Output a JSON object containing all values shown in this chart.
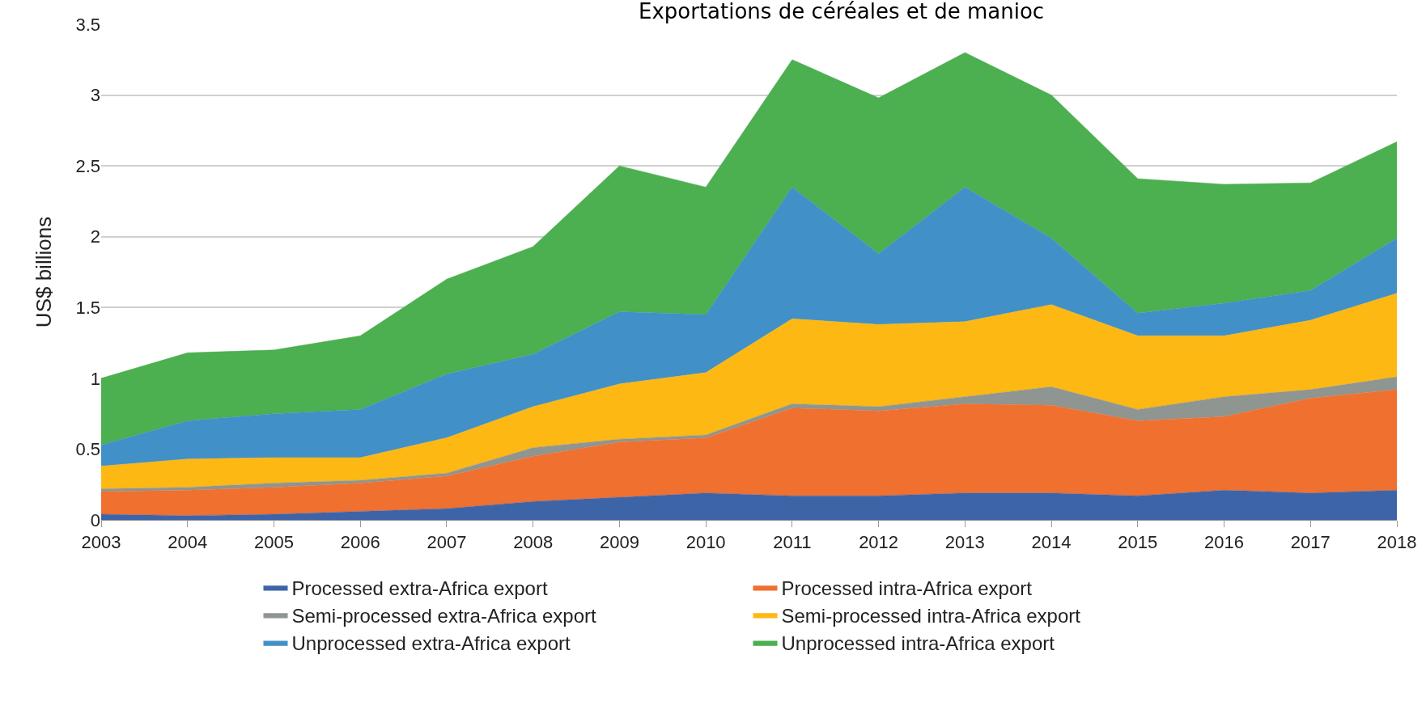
{
  "chart_data": {
    "type": "area",
    "stacked": true,
    "title": "Exportations de céréales et de manioc",
    "ylabel": "US$ billions",
    "x": [
      2003,
      2004,
      2005,
      2006,
      2007,
      2008,
      2009,
      2010,
      2011,
      2012,
      2013,
      2014,
      2015,
      2016,
      2017,
      2018
    ],
    "series": [
      {
        "name": "Processed extra-Africa export",
        "color": "#3e64a8",
        "values": [
          0.04,
          0.03,
          0.04,
          0.06,
          0.08,
          0.13,
          0.16,
          0.19,
          0.17,
          0.17,
          0.19,
          0.19,
          0.17,
          0.21,
          0.19,
          0.21
        ]
      },
      {
        "name": "Processed intra-Africa export",
        "color": "#f07030",
        "values": [
          0.16,
          0.18,
          0.19,
          0.2,
          0.23,
          0.32,
          0.39,
          0.39,
          0.62,
          0.6,
          0.63,
          0.62,
          0.53,
          0.52,
          0.67,
          0.71
        ]
      },
      {
        "name": "Semi-processed extra-Africa export",
        "color": "#8f9590",
        "values": [
          0.02,
          0.02,
          0.03,
          0.02,
          0.02,
          0.06,
          0.02,
          0.02,
          0.03,
          0.03,
          0.05,
          0.13,
          0.08,
          0.14,
          0.06,
          0.09
        ]
      },
      {
        "name": "Semi-processed intra-Africa export",
        "color": "#fdb813",
        "values": [
          0.16,
          0.2,
          0.18,
          0.16,
          0.25,
          0.29,
          0.39,
          0.44,
          0.6,
          0.58,
          0.53,
          0.58,
          0.52,
          0.43,
          0.49,
          0.59
        ]
      },
      {
        "name": "Unprocessed extra-Africa export",
        "color": "#4190c8",
        "values": [
          0.15,
          0.27,
          0.31,
          0.34,
          0.45,
          0.37,
          0.51,
          0.41,
          0.93,
          0.5,
          0.95,
          0.47,
          0.16,
          0.23,
          0.21,
          0.39
        ]
      },
      {
        "name": "Unprocessed intra-Africa export",
        "color": "#4caf50",
        "values": [
          0.47,
          0.48,
          0.45,
          0.52,
          0.67,
          0.76,
          1.03,
          0.9,
          0.9,
          1.1,
          0.95,
          1.01,
          0.95,
          0.84,
          0.76,
          0.68
        ]
      }
    ],
    "xlim": [
      2003,
      2018
    ],
    "xticks": [
      2003,
      2004,
      2005,
      2006,
      2007,
      2008,
      2009,
      2010,
      2011,
      2012,
      2013,
      2014,
      2015,
      2016,
      2017,
      2018
    ],
    "ylim": [
      0,
      3.5
    ],
    "yticks": [
      0,
      0.5,
      1,
      1.5,
      2,
      2.5,
      3,
      3.5
    ],
    "grid": "y",
    "legend": "bottom"
  }
}
